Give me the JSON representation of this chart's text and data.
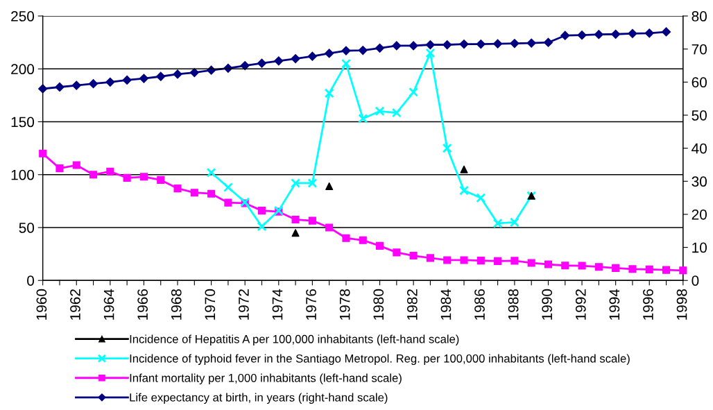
{
  "chart_data": {
    "type": "line",
    "x": [
      1960,
      1961,
      1962,
      1963,
      1964,
      1965,
      1966,
      1967,
      1968,
      1969,
      1970,
      1971,
      1972,
      1973,
      1974,
      1975,
      1976,
      1977,
      1978,
      1979,
      1980,
      1981,
      1982,
      1983,
      1984,
      1985,
      1986,
      1987,
      1988,
      1989,
      1990,
      1991,
      1992,
      1993,
      1994,
      1995,
      1996,
      1997,
      1998
    ],
    "series": [
      {
        "name": "Incidence of Hepatitis A per 100,000 inhabitants (left-hand scale)",
        "color": "#000000",
        "marker": "triangle",
        "type": "scatter",
        "x": [
          1975,
          1977,
          1985,
          1989
        ],
        "values": [
          45,
          89,
          105,
          80
        ]
      },
      {
        "name": "Incidence of typhoid fever in the Santiago Metropol. Reg. per 100,000 inhabitants (left-hand scale)",
        "color": "#00ffff",
        "marker": "cross",
        "values": [
          null,
          null,
          null,
          null,
          null,
          null,
          null,
          null,
          null,
          null,
          102,
          88,
          74,
          51,
          66,
          92,
          92,
          177,
          205,
          153,
          160,
          158.5,
          178,
          215,
          125,
          85,
          78,
          54,
          55,
          80,
          null,
          null,
          null,
          null,
          null,
          null,
          null,
          null,
          null
        ]
      },
      {
        "name": "Infant mortality per 1,000 inhabitants (left-hand scale)",
        "color": "#ff00ff",
        "marker": "square",
        "values": [
          120,
          106,
          109,
          100,
          103,
          97,
          98,
          95,
          87,
          83,
          82,
          73.5,
          73,
          66,
          65,
          57.5,
          56.5,
          50,
          40,
          38,
          32.7,
          26.5,
          23.4,
          21.2,
          19.2,
          19.2,
          18.8,
          18.3,
          18.6,
          16.6,
          15.2,
          14.1,
          13.9,
          12.8,
          11.7,
          10.8,
          10.4,
          9.9,
          9.5
        ]
      },
      {
        "name": "Life expectancy at birth, in years (right-hand scale)",
        "color": "#000080",
        "marker": "diamond",
        "axis": "y2",
        "values": [
          58.0,
          58.5,
          59.0,
          59.5,
          60.0,
          60.6,
          61.1,
          61.7,
          62.4,
          62.9,
          63.6,
          64.2,
          65.0,
          65.7,
          66.4,
          67.1,
          67.8,
          68.7,
          69.5,
          69.6,
          70.3,
          71.0,
          71.0,
          71.3,
          71.3,
          71.5,
          71.5,
          71.6,
          71.7,
          71.8,
          72.0,
          74.1,
          74.2,
          74.4,
          74.5,
          74.7,
          74.8,
          75.2,
          null
        ]
      }
    ],
    "xlim": [
      1960,
      1998
    ],
    "xticks": [
      1960,
      {
        "value": 1961,
        "label": null
      },
      1962,
      {
        "value": 1963,
        "label": null
      },
      1964,
      {
        "value": 1965,
        "label": null
      },
      1966,
      {
        "value": 1967,
        "label": null
      },
      1968,
      {
        "value": 1969,
        "label": null
      },
      1970,
      {
        "value": 1971,
        "label": null
      },
      1972,
      {
        "value": 1973,
        "label": null
      },
      1974,
      {
        "value": 1975,
        "label": null
      },
      1976,
      {
        "value": 1977,
        "label": null
      },
      1978,
      {
        "value": 1979,
        "label": null
      },
      1980,
      {
        "value": 1981,
        "label": null
      },
      1982,
      {
        "value": 1983,
        "label": null
      },
      1984,
      {
        "value": 1985,
        "label": null
      },
      1986,
      {
        "value": 1987,
        "label": null
      },
      1988,
      {
        "value": 1989,
        "label": null
      },
      1990,
      {
        "value": 1991,
        "label": null
      },
      1992,
      {
        "value": 1993,
        "label": null
      },
      1994,
      {
        "value": 1995,
        "label": null
      },
      1996,
      {
        "value": 1997,
        "label": null
      },
      1998
    ],
    "ylim": [
      0,
      250
    ],
    "yticks": [
      0,
      50,
      100,
      150,
      200,
      250
    ],
    "y2lim": [
      0,
      80
    ],
    "y2ticks": [
      0,
      10,
      20,
      30,
      40,
      50,
      60,
      70,
      80
    ],
    "grid": "y",
    "legend": "bottom",
    "line_style": "solid"
  }
}
